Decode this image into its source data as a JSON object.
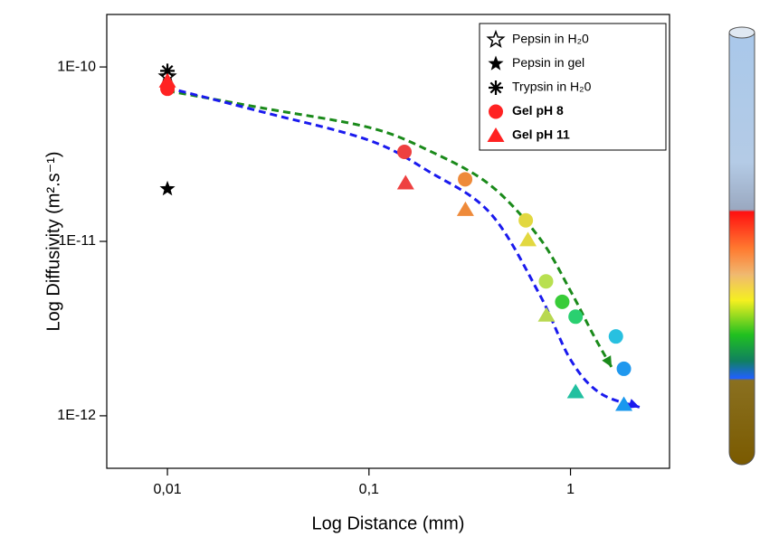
{
  "chart_data": {
    "type": "scatter",
    "x_label": "Log Distance (mm)",
    "y_label": "Log Diffusivity (m².s⁻¹)",
    "log_x": true,
    "log_y": true,
    "xlim": [
      0.005,
      3.1
    ],
    "ylim": [
      5e-13,
      2e-10
    ],
    "xticks": [
      {
        "value": 0.01,
        "label": "0,01"
      },
      {
        "value": 0.1,
        "label": "0,1"
      },
      1
    ],
    "yticks": [
      {
        "value": 1e-10,
        "label": "1E-10"
      },
      {
        "value": 1e-11,
        "label": "1E-11"
      },
      {
        "value": 1e-12,
        "label": "1E-12"
      }
    ],
    "legend": "upper right",
    "series": [
      {
        "name": "Pepsin in H₂0",
        "marker": "open-star",
        "color": "#000000",
        "x": [
          0.01
        ],
        "values": [
          8.8e-11
        ]
      },
      {
        "name": "Pepsin in gel",
        "marker": "star",
        "color": "#000000",
        "x": [
          0.01
        ],
        "values": [
          2e-11
        ]
      },
      {
        "name": "Trypsin in H₂0",
        "marker": "asterisk",
        "color": "#000000",
        "x": [
          0.01
        ],
        "values": [
          9.5e-11
        ]
      },
      {
        "name": "Gel pH 8",
        "marker": "circle",
        "color": "#ff2222",
        "text_color": "#1a8a1a",
        "x": [
          0.01,
          0.15,
          0.3,
          0.6,
          0.756,
          0.91,
          1.06,
          1.68,
          1.84
        ],
        "values": [
          7.5e-11,
          3.26e-11,
          2.27e-11,
          1.32e-11,
          5.9e-12,
          4.5e-12,
          3.7e-12,
          2.85e-12,
          1.86e-12
        ],
        "point_colors": [
          "#ff2222",
          "#ee4040",
          "#ee8a3a",
          "#e2d840",
          "#b8e050",
          "#38cc38",
          "#2ad070",
          "#28c0e0",
          "#2098ee"
        ]
      },
      {
        "name": "Gel pH 11",
        "marker": "triangle",
        "color": "#ff2222",
        "text_color": "#1a1aee",
        "x": [
          0.01,
          0.152,
          0.301,
          0.615,
          0.76,
          1.06,
          1.84
        ],
        "values": [
          8.3e-11,
          2.16e-11,
          1.52e-11,
          1.02e-11,
          3.77e-12,
          1.37e-12,
          1.16e-12
        ],
        "point_colors": [
          "#ff2222",
          "#ee4040",
          "#ee8a3a",
          "#e2d840",
          "#b8d850",
          "#22c0a0",
          "#1a98ee"
        ]
      }
    ],
    "curves": [
      {
        "color": "#1a8a1a",
        "x": [
          0.01,
          0.03,
          0.1,
          0.2,
          0.4,
          0.7,
          1.0,
          1.3,
          1.6
        ],
        "values": [
          7.3e-11,
          5.8e-11,
          4.5e-11,
          3.3e-11,
          2.1e-11,
          1.05e-11,
          5.2e-12,
          2.9e-12,
          1.9e-12
        ]
      },
      {
        "color": "#1a1aee",
        "x": [
          0.01,
          0.03,
          0.1,
          0.2,
          0.4,
          0.7,
          1.0,
          1.4,
          2.2
        ],
        "values": [
          7.6e-11,
          5.5e-11,
          3.8e-11,
          2.5e-11,
          1.45e-11,
          5e-12,
          2.1e-12,
          1.35e-12,
          1.12e-12
        ]
      }
    ]
  }
}
